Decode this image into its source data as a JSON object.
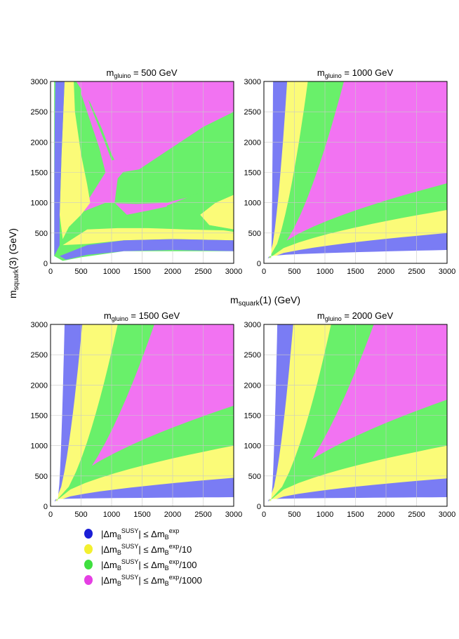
{
  "chart_data": {
    "type": "heatmap",
    "kind": "contour-regions",
    "xlabel": "m_squark(1) (GeV)",
    "ylabel": "m_squark(3) (GeV)",
    "xlim": [
      0,
      3000
    ],
    "ylim": [
      0,
      3000
    ],
    "xticks": [
      0,
      500,
      1000,
      1500,
      2000,
      2500,
      3000
    ],
    "yticks": [
      0,
      500,
      1000,
      1500,
      2000,
      2500,
      3000
    ],
    "panels": [
      {
        "title": {
          "base": "m",
          "sub": "gluino",
          "rest": " = 500 GeV"
        },
        "gluino_mass": 500,
        "pattern": "saddle",
        "regions": [
          {
            "level": 1,
            "color": "blue",
            "y_lower_boundary": [
              [
                300,
                50
              ],
              [
                1000,
                160
              ],
              [
                2000,
                200
              ],
              [
                3000,
                210
              ]
            ],
            "y_upper_boundary": [
              [
                300,
                50
              ],
              [
                1000,
                320
              ],
              [
                2000,
                340
              ],
              [
                3000,
                350
              ]
            ]
          },
          {
            "level": 3,
            "color": "magenta",
            "saddle_center": [
              950,
              1150
            ]
          }
        ]
      },
      {
        "title": {
          "base": "m",
          "sub": "gluino",
          "rest": " = 1000 GeV"
        },
        "gluino_mass": 1000,
        "pattern": "fan",
        "boundaries_at_x3000": {
          "min": 220,
          "blue": 500,
          "yellow": 880,
          "green": 1320
        },
        "boundaries_at_y3000": {
          "min": 150,
          "blue": 380,
          "yellow": 720,
          "green": 1310
        }
      },
      {
        "title": {
          "base": "m",
          "sub": "gluino",
          "rest": " = 1500 GeV"
        },
        "gluino_mass": 1500,
        "pattern": "fan",
        "boundaries_at_x3000": {
          "min": 150,
          "blue": 470,
          "yellow": 1000,
          "green": 1660
        },
        "boundaries_at_y3000": {
          "min": 230,
          "blue": 520,
          "yellow": 1100,
          "green": 1700
        }
      },
      {
        "title": {
          "base": "m",
          "sub": "gluino",
          "rest": " = 2000 GeV"
        },
        "gluino_mass": 2000,
        "pattern": "fan",
        "boundaries_at_x3000": {
          "min": 150,
          "blue": 460,
          "yellow": 1000,
          "green": 1760
        },
        "boundaries_at_y3000": {
          "min": 220,
          "blue": 480,
          "yellow": 1100,
          "green": 1800
        }
      }
    ],
    "legend": [
      {
        "color": "#1b1ed6",
        "pre": "|Δm",
        "sub1": "B",
        "sup1": "SUSY",
        "mid": "| ≤  Δm",
        "sub2": "B",
        "sup2": "exp",
        "post": ""
      },
      {
        "color": "#f3f02f",
        "pre": "|Δm",
        "sub1": "B",
        "sup1": "SUSY",
        "mid": "| ≤ Δm",
        "sub2": "B",
        "sup2": "exp",
        "post": "/10"
      },
      {
        "color": "#3fdf3f",
        "pre": "|Δm",
        "sub1": "B",
        "sup1": "SUSY",
        "mid": "| ≤ Δm",
        "sub2": "B",
        "sup2": "exp",
        "post": "/100"
      },
      {
        "color": "#e53fe3",
        "pre": "|Δm",
        "sub1": "B",
        "sup1": "SUSY",
        "mid": "| ≤ Δm",
        "sub2": "B",
        "sup2": "exp",
        "post": "/1000"
      }
    ],
    "colors": {
      "blue": "#7a7cf4",
      "yellow": "#fbfb78",
      "green": "#69f06a",
      "magenta": "#f273f2",
      "grid": "#c9c9c9"
    }
  }
}
